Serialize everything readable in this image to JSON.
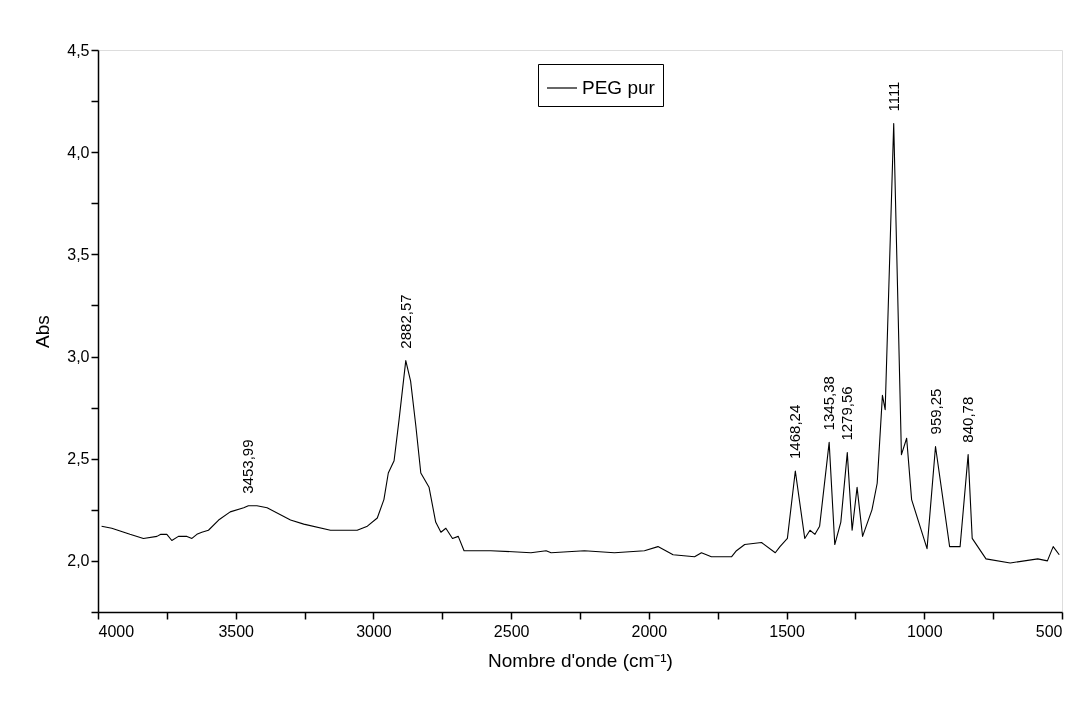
{
  "chart_data": {
    "type": "line",
    "xlabel": "Nombre d'onde (cm⁻¹)",
    "ylabel": "Abs",
    "xlim": [
      4000,
      500
    ],
    "ylim": [
      1.75,
      4.5
    ],
    "xticks": [
      4000,
      {
        "value": 3750,
        "label": null
      },
      3500,
      {
        "value": 3250,
        "label": null
      },
      3000,
      {
        "value": 2750,
        "label": null
      },
      2500,
      {
        "value": 2250,
        "label": null
      },
      2000,
      {
        "value": 1750,
        "label": null
      },
      1500,
      {
        "value": 1250,
        "label": null
      },
      1000,
      {
        "value": 750,
        "label": null
      },
      500
    ],
    "yticks": [
      {
        "value": 1.75,
        "label": null
      },
      {
        "value": 2.0,
        "label": "2,0"
      },
      {
        "value": 2.25,
        "label": null
      },
      {
        "value": 2.5,
        "label": "2,5"
      },
      {
        "value": 2.75,
        "label": null
      },
      {
        "value": 3.0,
        "label": "3,0"
      },
      {
        "value": 3.25,
        "label": null
      },
      {
        "value": 3.5,
        "label": "3,5"
      },
      {
        "value": 3.75,
        "label": null
      },
      {
        "value": 4.0,
        "label": "4,0"
      },
      {
        "value": 4.25,
        "label": null
      },
      {
        "value": 4.5,
        "label": "4,5"
      }
    ],
    "grid": false,
    "legend": "top",
    "marker": "none",
    "line_style": "solid",
    "series": [
      {
        "name": "PEG pur",
        "color": "#000000",
        "x": [
          3987,
          3950,
          3884,
          3835,
          3786,
          3772,
          3750,
          3732,
          3708,
          3677,
          3659,
          3641,
          3623,
          3599,
          3562,
          3520,
          3471,
          3453.99,
          3423,
          3386,
          3301,
          3253,
          3156,
          3059,
          3022,
          2986,
          2962,
          2946,
          2925,
          2907,
          2882.57,
          2865,
          2846,
          2828,
          2798,
          2774,
          2755,
          2737,
          2713,
          2692,
          2671,
          2574,
          2428,
          2373,
          2355,
          2234,
          2125,
          2016,
          1967,
          1912,
          1834,
          1809,
          1773,
          1700,
          1682,
          1652,
          1591,
          1541,
          1524,
          1497,
          1468.24,
          1434,
          1415,
          1397,
          1380,
          1345.38,
          1325,
          1303,
          1279.56,
          1262,
          1244,
          1224,
          1190,
          1171,
          1152,
          1142,
          1111,
          1083,
          1064,
          1046,
          990,
          959.25,
          908,
          870,
          840.78,
          826,
          776,
          688,
          588,
          553,
          532,
          510
        ],
        "values": [
          2.17,
          2.16,
          2.13,
          2.11,
          2.12,
          2.13,
          2.13,
          2.1,
          2.12,
          2.12,
          2.11,
          2.13,
          2.14,
          2.15,
          2.2,
          2.24,
          2.26,
          2.27,
          2.27,
          2.26,
          2.2,
          2.18,
          2.15,
          2.15,
          2.17,
          2.21,
          2.3,
          2.43,
          2.49,
          2.69,
          2.98,
          2.88,
          2.66,
          2.43,
          2.36,
          2.19,
          2.14,
          2.16,
          2.11,
          2.12,
          2.05,
          2.05,
          2.04,
          2.05,
          2.04,
          2.05,
          2.04,
          2.05,
          2.07,
          2.03,
          2.02,
          2.04,
          2.02,
          2.02,
          2.05,
          2.08,
          2.09,
          2.04,
          2.07,
          2.11,
          2.44,
          2.11,
          2.15,
          2.13,
          2.17,
          2.58,
          2.08,
          2.19,
          2.53,
          2.15,
          2.36,
          2.12,
          2.25,
          2.38,
          2.81,
          2.74,
          4.14,
          2.52,
          2.6,
          2.3,
          2.06,
          2.56,
          2.07,
          2.07,
          2.52,
          2.11,
          2.01,
          1.99,
          2.01,
          2.0,
          2.07,
          2.03
        ]
      }
    ],
    "annotations": [
      {
        "text": "3453,99",
        "x": 3453.99,
        "y": 2.27
      },
      {
        "text": "2882,57",
        "x": 2882.57,
        "y": 2.98
      },
      {
        "text": "1468,24",
        "x": 1468.24,
        "y": 2.44
      },
      {
        "text": "1345,38",
        "x": 1345.38,
        "y": 2.58
      },
      {
        "text": "1279,56",
        "x": 1279.56,
        "y": 2.53
      },
      {
        "text": "1111",
        "x": 1111,
        "y": 4.14
      },
      {
        "text": "959,25",
        "x": 959.25,
        "y": 2.56
      },
      {
        "text": "840,78",
        "x": 840.78,
        "y": 2.52
      }
    ]
  }
}
